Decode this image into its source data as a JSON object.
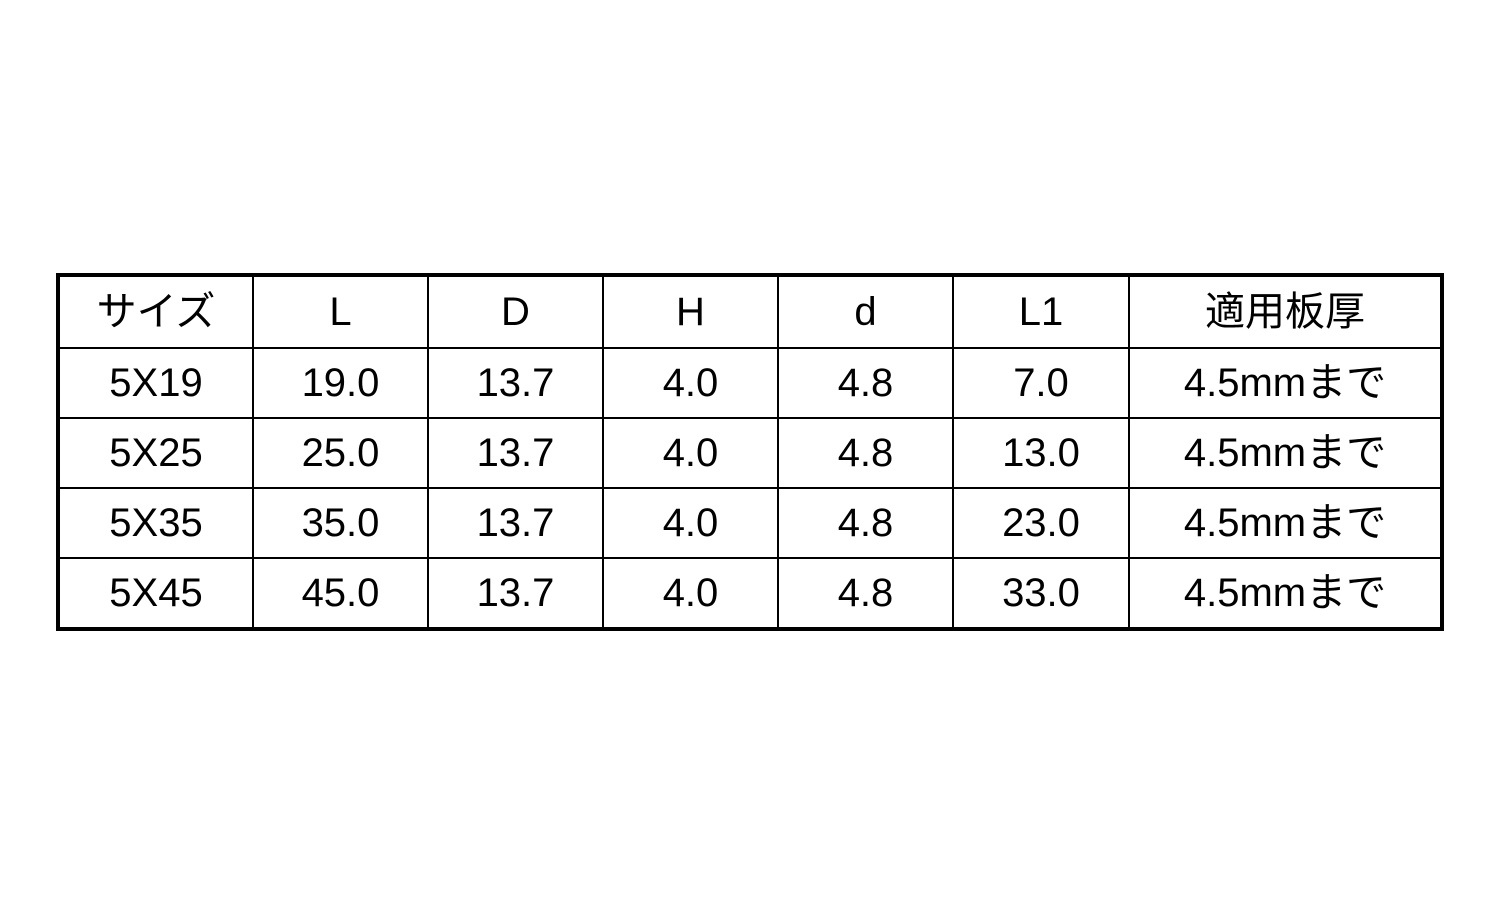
{
  "table": {
    "headers": [
      "サイズ",
      "L",
      "D",
      "H",
      "d",
      "L1",
      "適用板厚"
    ],
    "rows": [
      [
        "5X19",
        "19.0",
        "13.7",
        "4.0",
        "4.8",
        "7.0",
        "4.5mmまで"
      ],
      [
        "5X25",
        "25.0",
        "13.7",
        "4.0",
        "4.8",
        "13.0",
        "4.5mmまで"
      ],
      [
        "5X35",
        "35.0",
        "13.7",
        "4.0",
        "4.8",
        "23.0",
        "4.5mmまで"
      ],
      [
        "5X45",
        "45.0",
        "13.7",
        "4.0",
        "4.8",
        "33.0",
        "4.5mmまで"
      ]
    ]
  }
}
